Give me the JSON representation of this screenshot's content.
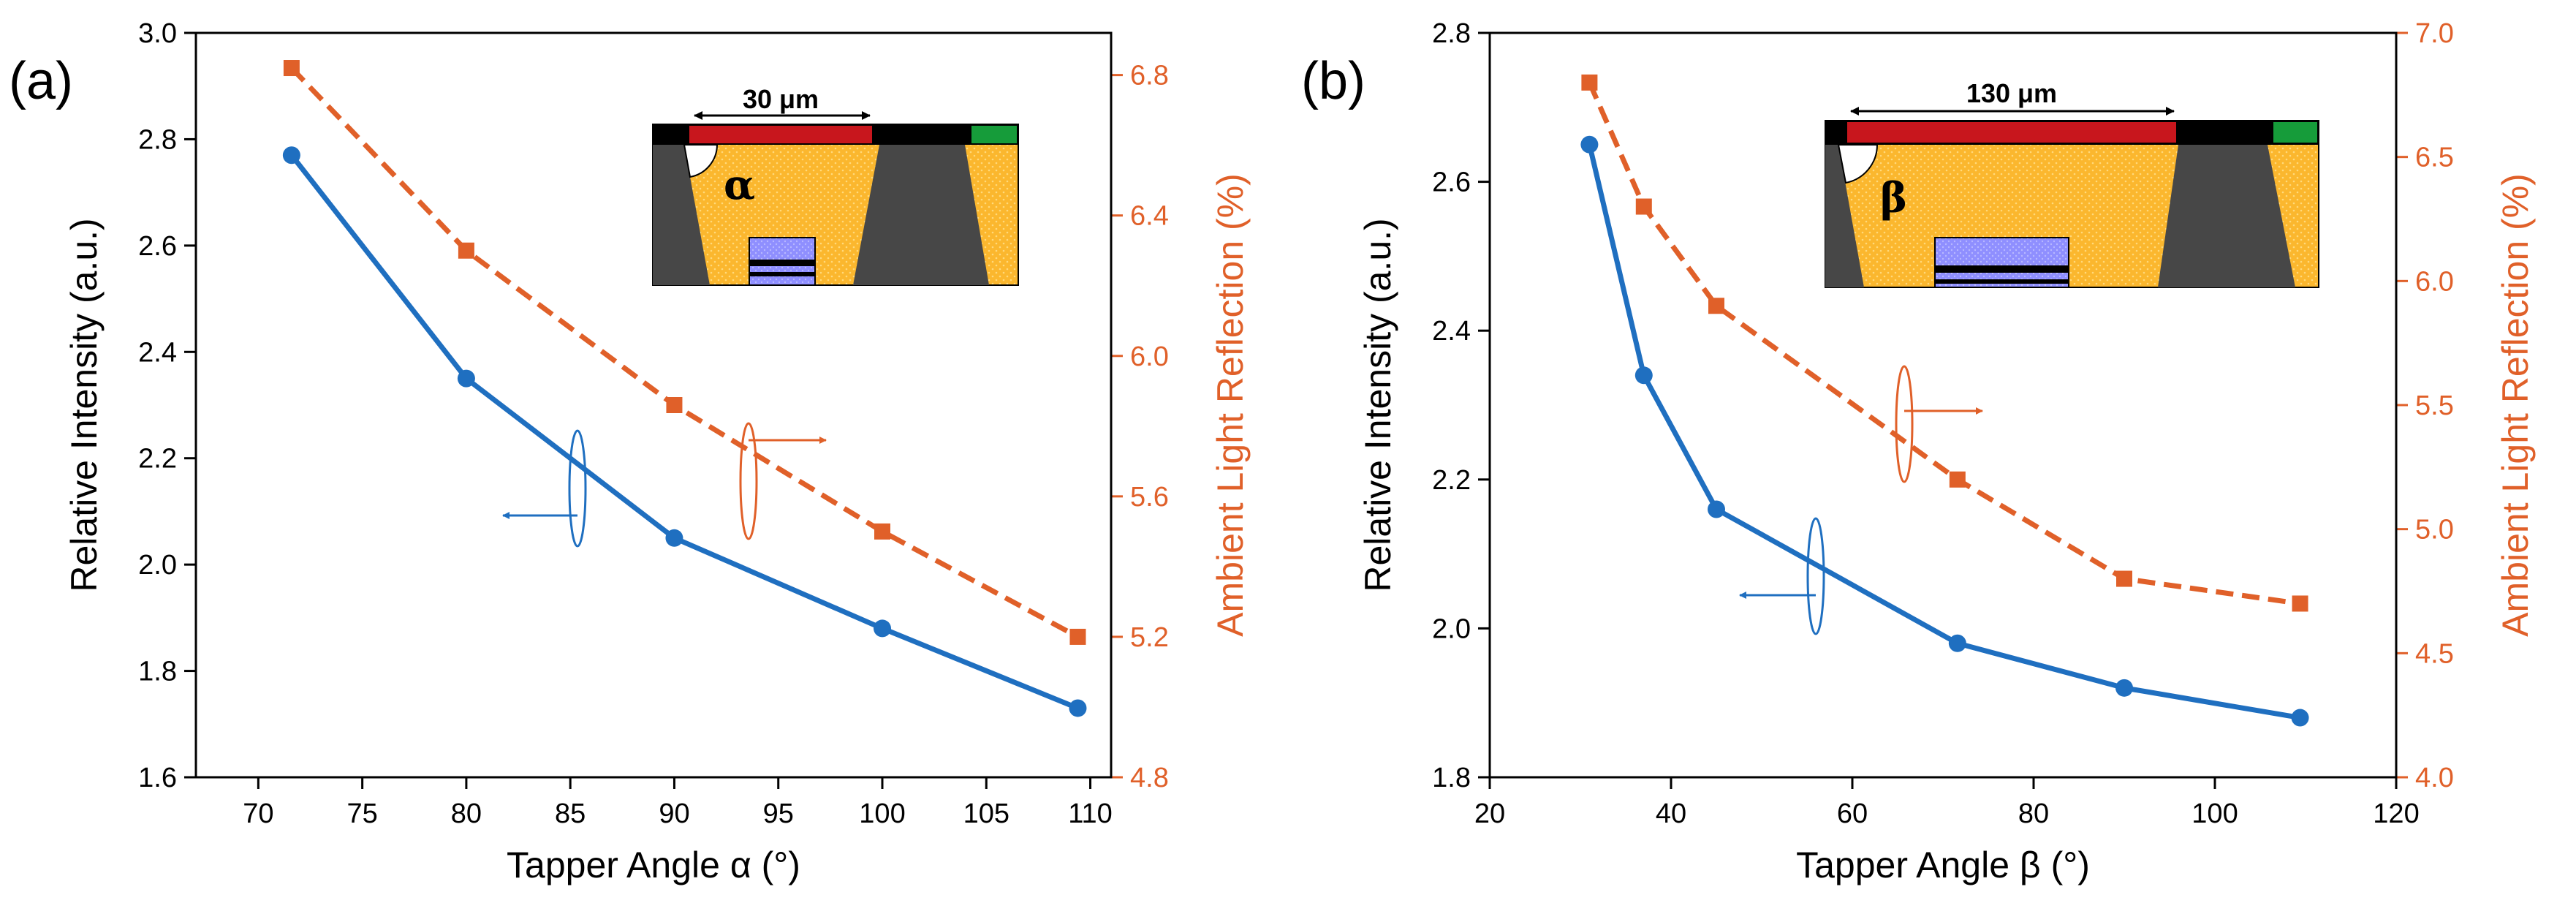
{
  "colors": {
    "intensity": "#1f6fc0",
    "reflection": "#e06029",
    "axis": "#000000",
    "inset_gold": "#fbb72e",
    "inset_dark": "#474747",
    "inset_red": "#c8161d",
    "inset_green": "#169c3a",
    "inset_blue": "#8f8fff"
  },
  "chart_data": [
    {
      "type": "line",
      "panel_label": "(a)",
      "xlabel": "Tapper Angle α (°)",
      "ylabel_left": "Relative Intensity (a.u.)",
      "ylabel_right": "Ambient Light Reflection (%)",
      "xlim": [
        67,
        111
      ],
      "x_ticks": [
        "70",
        "75",
        "80",
        "85",
        "90",
        "95",
        "100",
        "105",
        "110"
      ],
      "ylim_left": [
        1.6,
        3.0
      ],
      "y_ticks_left": [
        "1.6",
        "1.8",
        "2.0",
        "2.2",
        "2.4",
        "2.6",
        "2.8",
        "3.0"
      ],
      "ylim_right": [
        4.8,
        6.92
      ],
      "y_ticks_right": [
        "4.8",
        "5.2",
        "5.6",
        "6.0",
        "6.4",
        "6.8"
      ],
      "inset": {
        "dimension": "30 μm",
        "symbol": "α"
      },
      "series": [
        {
          "axis": "left",
          "marker": "circle",
          "line": "solid",
          "points": [
            [
              71.6,
              2.77
            ],
            [
              80,
              2.35
            ],
            [
              90,
              2.05
            ],
            [
              100,
              1.88
            ],
            [
              109.4,
              1.73
            ]
          ]
        },
        {
          "axis": "right",
          "marker": "square",
          "line": "dashed",
          "points": [
            [
              71.6,
              6.82
            ],
            [
              80,
              6.3
            ],
            [
              90,
              5.86
            ],
            [
              100,
              5.5
            ],
            [
              109.4,
              5.2
            ]
          ]
        }
      ]
    },
    {
      "type": "line",
      "panel_label": "(b)",
      "xlabel": "Tapper Angle β (°)",
      "ylabel_left": "Relative Intensity (a.u.)",
      "ylabel_right": "Ambient Light Reflection (%)",
      "xlim": [
        20,
        120
      ],
      "x_ticks": [
        "20",
        "40",
        "60",
        "80",
        "100",
        "120"
      ],
      "ylim_left": [
        1.8,
        2.8
      ],
      "y_ticks_left": [
        "1.8",
        "2.0",
        "2.2",
        "2.4",
        "2.6",
        "2.8"
      ],
      "ylim_right": [
        4.0,
        7.0
      ],
      "y_ticks_right": [
        "4.0",
        "4.5",
        "5.0",
        "5.5",
        "6.0",
        "6.5",
        "7.0"
      ],
      "inset": {
        "dimension": "130 μm",
        "symbol": "β"
      },
      "series": [
        {
          "axis": "left",
          "marker": "circle",
          "line": "solid",
          "points": [
            [
              31,
              2.65
            ],
            [
              37,
              2.34
            ],
            [
              45,
              2.16
            ],
            [
              71.6,
              1.98
            ],
            [
              90,
              1.92
            ],
            [
              109.4,
              1.88
            ]
          ]
        },
        {
          "axis": "right",
          "marker": "square",
          "line": "dashed",
          "points": [
            [
              31,
              6.8
            ],
            [
              37,
              6.3
            ],
            [
              45,
              5.9
            ],
            [
              71.6,
              5.2
            ],
            [
              90,
              4.8
            ],
            [
              109.4,
              4.7
            ]
          ]
        }
      ]
    }
  ]
}
